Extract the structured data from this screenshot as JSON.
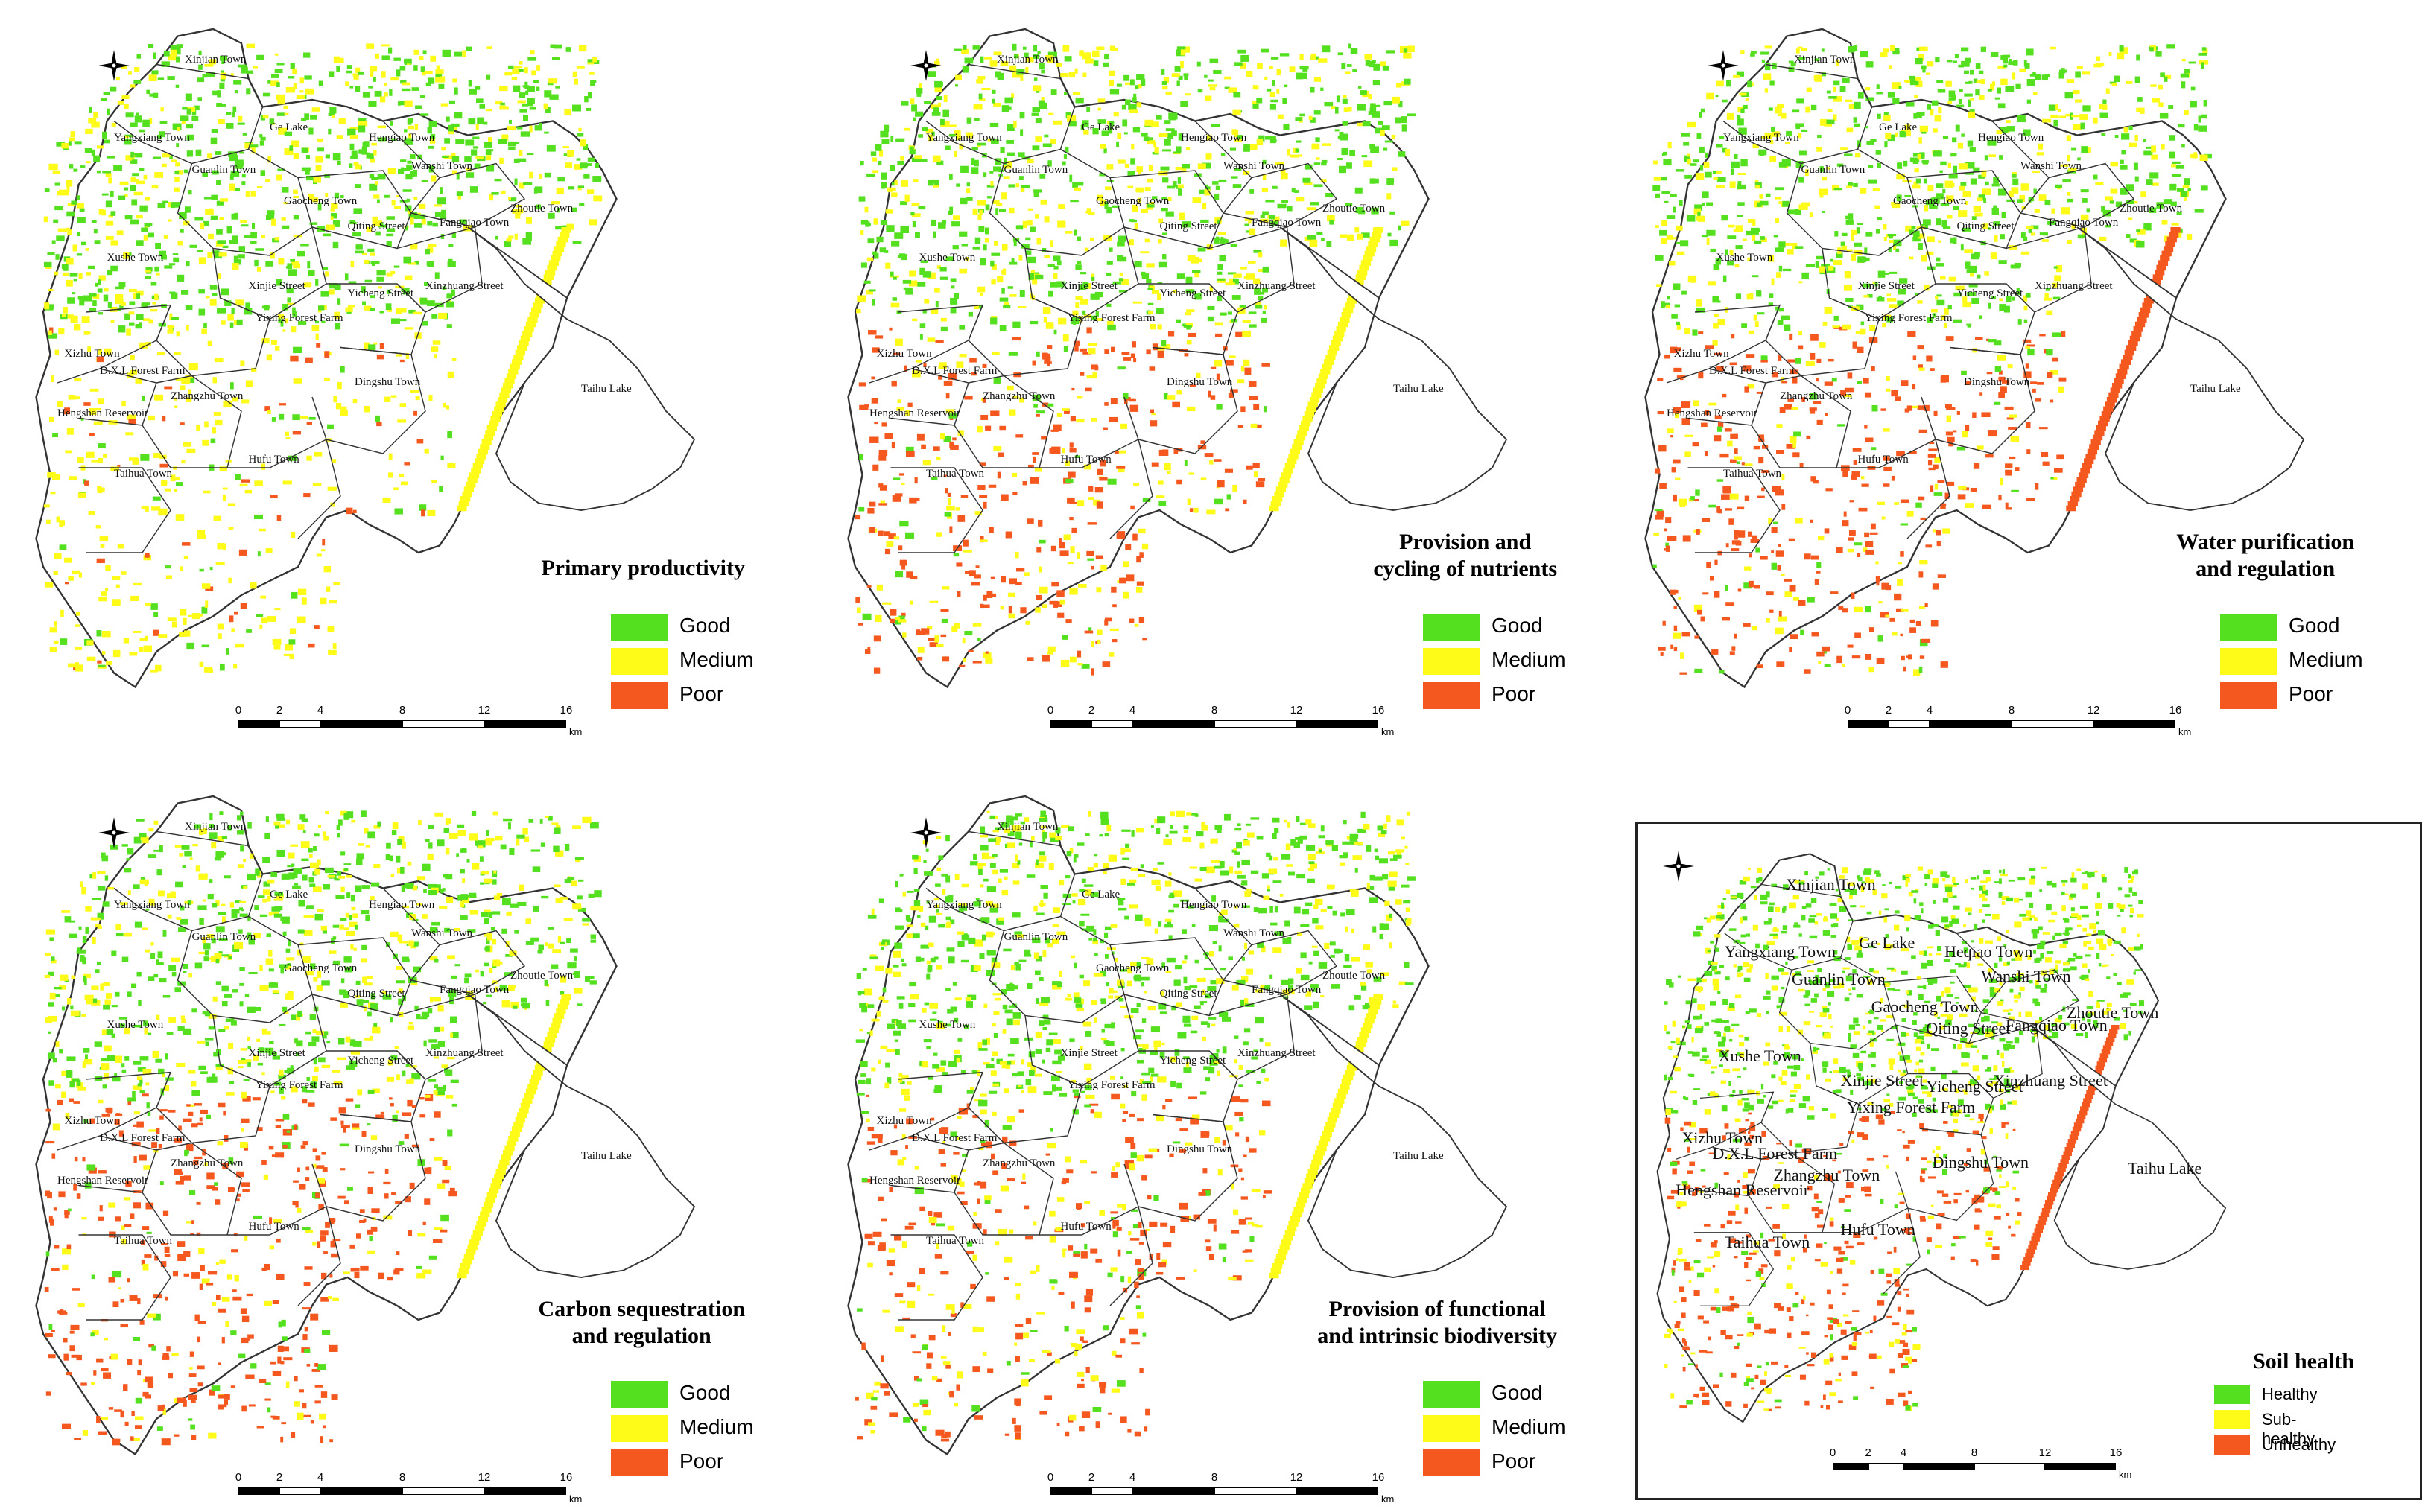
{
  "colors": {
    "good": "#54e01f",
    "medium": "#fdfb17",
    "poor": "#f5581e",
    "boundary": "#333333",
    "frame": "#222222"
  },
  "panels": [
    {
      "title_line1": "Primary productivity",
      "title_line2": "",
      "legend": [
        "Good",
        "Medium",
        "Poor"
      ],
      "pattern": {
        "north_green": 0.62,
        "south_poor": 0.1,
        "south_yellow": 0.55,
        "shore_poor": 0.0
      }
    },
    {
      "title_line1": "Provision and",
      "title_line2": "cycling of nutrients",
      "legend": [
        "Good",
        "Medium",
        "Poor"
      ],
      "pattern": {
        "north_green": 0.55,
        "south_poor": 0.55,
        "south_yellow": 0.25,
        "shore_poor": 0.0
      }
    },
    {
      "title_line1": "Water purification",
      "title_line2": "and regulation",
      "legend": [
        "Good",
        "Medium",
        "Poor"
      ],
      "pattern": {
        "north_green": 0.55,
        "south_poor": 0.65,
        "south_yellow": 0.15,
        "shore_poor": 1.0
      }
    },
    {
      "title_line1": "Carbon sequestration",
      "title_line2": "and regulation",
      "legend": [
        "Good",
        "Medium",
        "Poor"
      ],
      "pattern": {
        "north_green": 0.5,
        "south_poor": 0.7,
        "south_yellow": 0.15,
        "shore_poor": 0.0
      }
    },
    {
      "title_line1": "Provision of functional",
      "title_line2": "and intrinsic biodiversity",
      "legend": [
        "Good",
        "Medium",
        "Poor"
      ],
      "pattern": {
        "north_green": 0.5,
        "south_poor": 0.55,
        "south_yellow": 0.25,
        "shore_poor": 0.0
      }
    },
    {
      "title_line1": "Soil  health",
      "title_line2": "",
      "legend": [
        "Healthy",
        "Sub-healthy",
        "Unhealthy"
      ],
      "pattern": {
        "north_green": 0.55,
        "south_poor": 0.6,
        "south_yellow": 0.2,
        "shore_poor": 1.0
      }
    }
  ],
  "towns": [
    "Xinjian Town",
    "Ge Lake",
    "Yangxiang Town",
    "Hengiao Town",
    "Guanlin Town",
    "Wanshi Town",
    "Gaocheng Town",
    "Zhoutie Town",
    "Qiting Street",
    "Fangqiao Town",
    "Xushe Town",
    "Xinjie Street",
    "Yicheng Street",
    "Xinzhuang Street",
    "Yixing Forest Farm",
    "Taihu Lake",
    "Xizhu Town",
    "D.X.L Forest Farm",
    "Dingshu Town",
    "Zhangzhu Town",
    "Hengshan Reservoir",
    "Hufu Town",
    "Taihua Town"
  ],
  "soil_towns": [
    "Xinjian Town",
    "Ge Lake",
    "Yangxiang Town",
    "Heqiao Town",
    "Guanlin Town",
    "Wanshi Town",
    "Gaocheng Town",
    "Zhoutie Town",
    "Qiting Street",
    "Fangqiao Town",
    "Xushe Town",
    "Xinjie Street",
    "Yicheng Street",
    "Xinzhuang Street",
    "Yixing Forest Farm",
    "Taihu Lake",
    "Xizhu Town",
    "D.X.L Forest Farm",
    "Dingshu Town",
    "Zhangzhu Town",
    "Hengshan Reservoir",
    "Hufu Town",
    "Taihua Town"
  ],
  "scale": {
    "ticks": [
      "0",
      "2",
      "4",
      "8",
      "12",
      "16"
    ],
    "unit": "km"
  },
  "north_label": "N"
}
